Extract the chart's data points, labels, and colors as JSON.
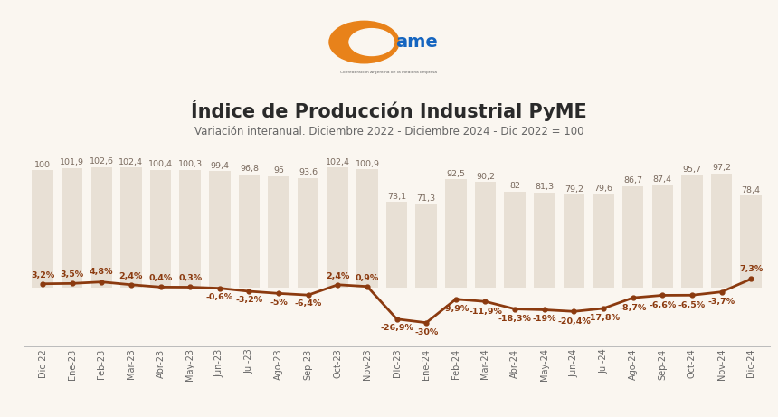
{
  "title": "Índice de Producción Industrial PyME",
  "subtitle": "Variación interanual. Diciembre 2022 - Diciembre 2024 - Dic 2022 = 100",
  "categories": [
    "Dic-22",
    "Ene-23",
    "Feb-23",
    "Mar-23",
    "Abr-23",
    "May-23",
    "Jun-23",
    "Jul-23",
    "Ago-23",
    "Sep-23",
    "Oct-23",
    "Nov-23",
    "Dic-23",
    "Ene-24",
    "Feb-24",
    "Mar-24",
    "Abr-24",
    "May-24",
    "Jun-24",
    "Jul-24",
    "Ago-24",
    "Sep-24",
    "Oct-24",
    "Nov-24",
    "Dic-24"
  ],
  "bar_values": [
    100,
    101.9,
    102.6,
    102.4,
    100.4,
    100.3,
    99.4,
    96.8,
    95,
    93.6,
    102.4,
    100.9,
    73.1,
    71.3,
    92.5,
    90.2,
    82,
    81.3,
    79.2,
    79.6,
    86.7,
    87.4,
    95.7,
    97.2,
    78.4
  ],
  "line_values": [
    3.2,
    3.5,
    4.8,
    2.4,
    0.4,
    0.3,
    -0.6,
    -3.2,
    -5.0,
    -6.4,
    2.4,
    0.9,
    -26.9,
    -30.0,
    -9.9,
    -11.9,
    -18.3,
    -19.0,
    -20.4,
    -17.8,
    -8.7,
    -6.6,
    -6.5,
    -3.7,
    7.3
  ],
  "line_labels": [
    "3,2%",
    "3,5%",
    "4,8%",
    "2,4%",
    "0,4%",
    "0,3%",
    "-0,6%",
    "-3,2%",
    "-5%",
    "-6,4%",
    "2,4%",
    "0,9%",
    "-26,9%",
    "-30%",
    "-9,9%",
    "-11,9%",
    "-18,3%",
    "-19%",
    "-20,4%",
    "-17,8%",
    "-8,7%",
    "-6,6%",
    "-6,5%",
    "-3,7%",
    "7,3%"
  ],
  "bar_labels": [
    "100",
    "101,9",
    "102,6",
    "102,4",
    "100,4",
    "100,3",
    "99,4",
    "96,8",
    "95",
    "93,6",
    "102,4",
    "100,9",
    "73,1",
    "71,3",
    "92,5",
    "90,2",
    "82",
    "81,3",
    "79,2",
    "79,6",
    "86,7",
    "87,4",
    "95,7",
    "97,2",
    "78,4"
  ],
  "bar_color": "#e8e0d5",
  "line_color": "#8B3A0F",
  "marker_color": "#8B3A0F",
  "label_color": "#8B3A0F",
  "bar_label_color": "#7a6a5e",
  "background_color": "#faf6f0",
  "title_color": "#2a2a2a",
  "subtitle_color": "#666666",
  "title_fontsize": 15,
  "subtitle_fontsize": 8.5,
  "bar_label_fontsize": 6.8,
  "line_label_fontsize": 6.8,
  "tick_fontsize": 7,
  "ylim_min": -50,
  "ylim_max": 128
}
